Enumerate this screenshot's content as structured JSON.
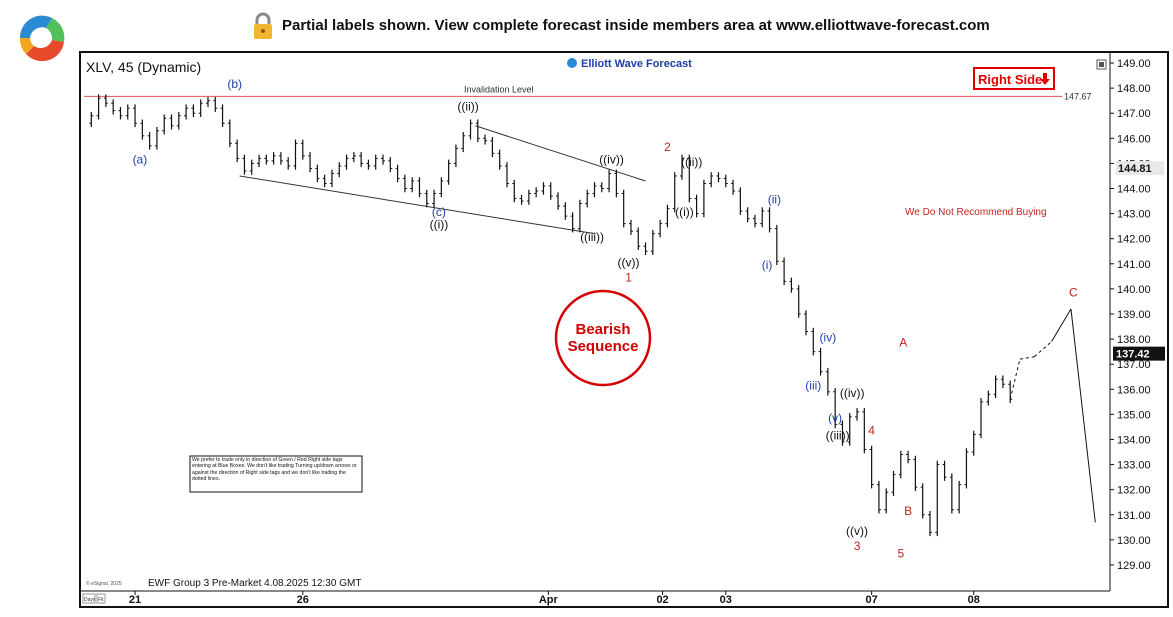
{
  "banner": {
    "text": "Partial labels shown. View complete forecast inside members area at www.elliottwave-forecast.com",
    "logo": "ewf-swirl-logo",
    "lock": "lock-icon"
  },
  "chart_data": {
    "type": "candlestick",
    "title": "XLV, 45 (Dynamic)",
    "watermark": "Elliott Wave Forecast",
    "footer": "EWF Group 3 Pre-Market 4.08.2025 12:30 GMT",
    "copyright": "© eSignal, 2025",
    "ylim": [
      128.4,
      149.2
    ],
    "y_ticks": [
      "149.00",
      "148.00",
      "147.00",
      "146.00",
      "145.00",
      "144.00",
      "143.00",
      "142.00",
      "141.00",
      "140.00",
      "139.00",
      "138.00",
      "137.00",
      "136.00",
      "135.00",
      "134.00",
      "133.00",
      "132.00",
      "131.00",
      "130.00",
      "129.00"
    ],
    "x_ticks": [
      "21",
      "26",
      "Apr",
      "02",
      "03",
      "07",
      "08"
    ],
    "last_price": "137.42",
    "prior_price_tag": "144.81",
    "invalidation": {
      "label": "Invalidation Level",
      "value": 147.67,
      "value_label": "147.67",
      "color": "#e05050"
    },
    "right_side": {
      "label": "Right Side",
      "arrow": "arrow-down-icon",
      "color": "#e00000"
    },
    "note_red": "We Do Not Recommend Buying",
    "bearish": {
      "line1": "Bearish",
      "line2": "Sequence",
      "color": "#d40000"
    },
    "disclaimer": "We prefer to trade only in direction of Green / Red Right side tags entering at Blue Boxes. We don't like trading Turning up/down arrows or against the direction of Right side tags and we don't like trading the dotted lines.",
    "axis_buttons": [
      "Days",
      "Fit"
    ],
    "colors": {
      "blue": "#1f3fa8",
      "red": "#c0241c",
      "black": "#111111"
    },
    "price_path": [
      [
        0,
        146.6
      ],
      [
        3,
        146.9
      ],
      [
        6,
        147.6
      ],
      [
        9,
        147.4
      ],
      [
        12,
        147.1
      ],
      [
        15,
        146.9
      ],
      [
        18,
        147.2
      ],
      [
        21,
        146.6
      ],
      [
        24,
        146.1
      ],
      [
        27,
        145.7
      ],
      [
        30,
        146.3
      ],
      [
        33,
        146.8
      ],
      [
        36,
        146.5
      ],
      [
        39,
        146.9
      ],
      [
        42,
        147.2
      ],
      [
        45,
        147.0
      ],
      [
        48,
        147.4
      ],
      [
        51,
        147.5
      ],
      [
        54,
        147.2
      ],
      [
        57,
        146.6
      ],
      [
        60,
        145.8
      ],
      [
        63,
        145.2
      ],
      [
        66,
        144.7
      ],
      [
        69,
        145.0
      ],
      [
        72,
        145.2
      ],
      [
        75,
        145.1
      ],
      [
        78,
        145.3
      ],
      [
        81,
        145.1
      ],
      [
        84,
        144.9
      ],
      [
        87,
        145.8
      ],
      [
        90,
        145.3
      ],
      [
        93,
        144.8
      ],
      [
        96,
        144.4
      ],
      [
        99,
        144.2
      ],
      [
        102,
        144.6
      ],
      [
        105,
        144.9
      ],
      [
        108,
        145.2
      ],
      [
        111,
        145.3
      ],
      [
        114,
        145.0
      ],
      [
        117,
        144.9
      ],
      [
        120,
        145.2
      ],
      [
        123,
        145.1
      ],
      [
        126,
        144.8
      ],
      [
        129,
        144.4
      ],
      [
        132,
        144.0
      ],
      [
        135,
        144.3
      ],
      [
        138,
        143.8
      ],
      [
        141,
        143.4
      ],
      [
        144,
        143.8
      ],
      [
        147,
        144.3
      ],
      [
        150,
        145.0
      ],
      [
        153,
        145.6
      ],
      [
        156,
        146.1
      ],
      [
        159,
        146.6
      ],
      [
        162,
        146.0
      ],
      [
        165,
        145.9
      ],
      [
        168,
        145.4
      ],
      [
        171,
        144.9
      ],
      [
        174,
        144.2
      ],
      [
        177,
        143.6
      ],
      [
        180,
        143.5
      ],
      [
        183,
        143.8
      ],
      [
        186,
        143.9
      ],
      [
        189,
        144.1
      ],
      [
        192,
        143.7
      ],
      [
        195,
        143.3
      ],
      [
        198,
        142.9
      ],
      [
        201,
        142.4
      ],
      [
        204,
        143.4
      ],
      [
        207,
        143.8
      ],
      [
        210,
        144.1
      ],
      [
        213,
        144.0
      ],
      [
        216,
        144.6
      ],
      [
        219,
        143.8
      ],
      [
        222,
        142.6
      ],
      [
        225,
        142.3
      ],
      [
        228,
        141.7
      ],
      [
        231,
        141.5
      ],
      [
        234,
        142.2
      ],
      [
        237,
        142.6
      ],
      [
        240,
        143.2
      ],
      [
        243,
        144.5
      ],
      [
        246,
        145.2
      ],
      [
        249,
        143.6
      ],
      [
        252,
        143.0
      ],
      [
        255,
        144.2
      ],
      [
        258,
        144.5
      ],
      [
        261,
        144.4
      ],
      [
        264,
        144.2
      ],
      [
        267,
        143.9
      ],
      [
        270,
        143.1
      ],
      [
        273,
        142.8
      ],
      [
        276,
        142.6
      ],
      [
        279,
        143.1
      ],
      [
        282,
        142.4
      ],
      [
        285,
        141.1
      ],
      [
        288,
        140.3
      ],
      [
        291,
        140.0
      ],
      [
        294,
        139.0
      ],
      [
        297,
        138.3
      ],
      [
        300,
        137.5
      ],
      [
        303,
        136.7
      ],
      [
        306,
        135.9
      ],
      [
        309,
        134.6
      ],
      [
        312,
        133.9
      ],
      [
        315,
        134.9
      ],
      [
        318,
        135.1
      ],
      [
        321,
        133.6
      ],
      [
        324,
        132.2
      ],
      [
        327,
        131.2
      ],
      [
        330,
        131.9
      ],
      [
        333,
        132.6
      ],
      [
        336,
        133.4
      ],
      [
        339,
        133.2
      ],
      [
        342,
        132.1
      ],
      [
        345,
        131.0
      ],
      [
        348,
        130.3
      ],
      [
        351,
        133.0
      ],
      [
        354,
        132.5
      ],
      [
        357,
        131.2
      ],
      [
        360,
        132.2
      ],
      [
        363,
        133.5
      ],
      [
        366,
        134.2
      ],
      [
        369,
        135.5
      ],
      [
        372,
        135.8
      ],
      [
        375,
        136.4
      ],
      [
        378,
        136.2
      ],
      [
        381,
        135.6
      ]
    ],
    "projection": [
      [
        381,
        135.6
      ],
      [
        385,
        137.2
      ],
      [
        391,
        137.3
      ],
      [
        398,
        137.9
      ],
      [
        406,
        139.2
      ],
      [
        416,
        130.7
      ]
    ],
    "trendlines": [
      {
        "from": [
          64,
          144.5
        ],
        "to": [
          210,
          142.2
        ]
      },
      {
        "from": [
          161,
          146.5
        ],
        "to": [
          231,
          144.3
        ]
      }
    ],
    "wave_labels": [
      {
        "text": "(b)",
        "x": 62,
        "y": 148.0,
        "color": "blue"
      },
      {
        "text": "(a)",
        "x": 23,
        "y": 145.0,
        "color": "blue"
      },
      {
        "text": "((ii))",
        "x": 158,
        "y": 147.1,
        "color": "black"
      },
      {
        "text": "(c)",
        "x": 146,
        "y": 142.9,
        "color": "blue"
      },
      {
        "text": "((i))",
        "x": 146,
        "y": 142.4,
        "color": "black"
      },
      {
        "text": "((iv))",
        "x": 217,
        "y": 145.0,
        "color": "black"
      },
      {
        "text": "((iii))",
        "x": 209,
        "y": 141.9,
        "color": "black"
      },
      {
        "text": "2",
        "x": 240,
        "y": 145.5,
        "color": "red"
      },
      {
        "text": "((ii))",
        "x": 250,
        "y": 144.9,
        "color": "black"
      },
      {
        "text": "((i))",
        "x": 247,
        "y": 142.9,
        "color": "black"
      },
      {
        "text": "((v))",
        "x": 224,
        "y": 140.9,
        "color": "black"
      },
      {
        "text": "1",
        "x": 224,
        "y": 140.3,
        "color": "red"
      },
      {
        "text": "(ii)",
        "x": 284,
        "y": 143.4,
        "color": "blue"
      },
      {
        "text": "(i)",
        "x": 281,
        "y": 140.8,
        "color": "blue"
      },
      {
        "text": "(iv)",
        "x": 306,
        "y": 137.9,
        "color": "blue"
      },
      {
        "text": "(iii)",
        "x": 300,
        "y": 136.0,
        "color": "blue"
      },
      {
        "text": "((iv))",
        "x": 316,
        "y": 135.7,
        "color": "black"
      },
      {
        "text": "(v)",
        "x": 309,
        "y": 134.7,
        "color": "blue"
      },
      {
        "text": "((iii))",
        "x": 310,
        "y": 134.0,
        "color": "black"
      },
      {
        "text": "4",
        "x": 324,
        "y": 134.2,
        "color": "red"
      },
      {
        "text": "A",
        "x": 337,
        "y": 137.7,
        "color": "red"
      },
      {
        "text": "B",
        "x": 339,
        "y": 131.0,
        "color": "red"
      },
      {
        "text": "((v))",
        "x": 318,
        "y": 130.2,
        "color": "black"
      },
      {
        "text": "3",
        "x": 318,
        "y": 129.6,
        "color": "red"
      },
      {
        "text": "5",
        "x": 336,
        "y": 129.3,
        "color": "red"
      },
      {
        "text": "C",
        "x": 407,
        "y": 139.7,
        "color": "red"
      }
    ]
  }
}
